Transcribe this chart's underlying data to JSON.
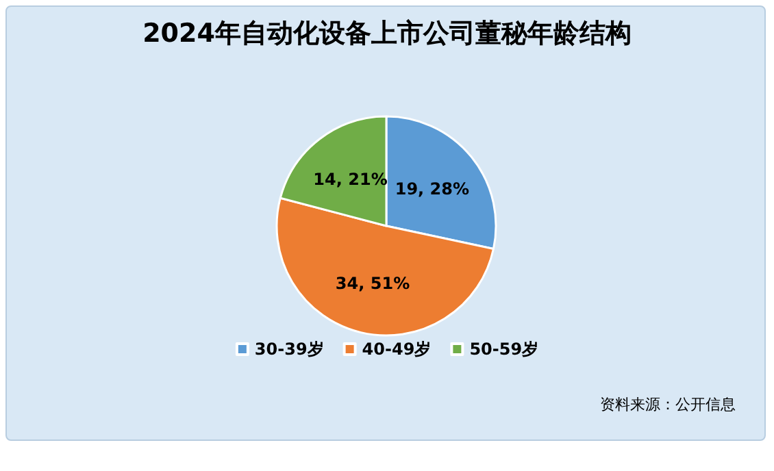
{
  "chart_data": {
    "type": "pie",
    "title": "2024年自动化设备上市公司董秘年龄结构",
    "categories": [
      "30-39岁",
      "40-49岁",
      "50-59岁"
    ],
    "values": [
      19,
      34,
      14
    ],
    "value_labels": [
      "19, 28%",
      "34, 51%",
      "14, 21%"
    ],
    "colors": [
      "#5b9bd5",
      "#ed7d31",
      "#70ad47"
    ],
    "legend": "bottom",
    "annotations": [
      "资料来源：公开信息"
    ]
  }
}
